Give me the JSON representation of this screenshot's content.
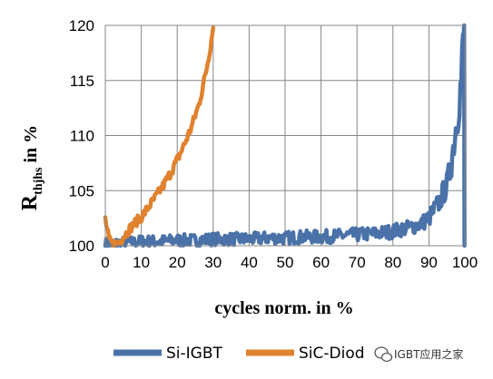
{
  "chart_data": {
    "type": "line",
    "xlabel": "cycles norm. in %",
    "ylabel_main": "R",
    "ylabel_sub": "thjhs",
    "ylabel_rest": " in %",
    "xlim": [
      0,
      100
    ],
    "ylim": [
      100,
      120
    ],
    "x_ticks": [
      "0",
      "10",
      "20",
      "30",
      "40",
      "50",
      "60",
      "70",
      "80",
      "90",
      "100"
    ],
    "y_ticks": [
      "100",
      "105",
      "110",
      "115",
      "120"
    ],
    "grid": true,
    "legend_position": "bottom",
    "series": [
      {
        "name": "Si-IGBT",
        "color": "#4A72A8",
        "x": [
          0,
          3,
          5,
          8,
          10,
          15,
          20,
          25,
          30,
          35,
          40,
          45,
          50,
          55,
          60,
          65,
          70,
          75,
          80,
          82,
          84,
          86,
          88,
          89,
          90,
          91,
          92,
          93,
          94,
          95,
          96,
          97,
          98,
          99,
          99.5,
          99.8
        ],
        "y": [
          100.2,
          100.2,
          100.3,
          100.3,
          100.4,
          100.4,
          100.5,
          100.5,
          100.6,
          100.6,
          100.6,
          100.7,
          100.7,
          100.8,
          100.8,
          100.9,
          101.0,
          101.1,
          101.3,
          101.5,
          101.6,
          101.8,
          102.0,
          102.3,
          102.5,
          103.0,
          103.5,
          104.0,
          104.8,
          105.5,
          107.0,
          109.5,
          112.0,
          115.0,
          118.0,
          120.0
        ]
      },
      {
        "name": "SiC-Diode",
        "color": "#E0822E",
        "x": [
          0,
          1,
          2,
          3,
          4,
          5,
          6,
          7,
          8,
          10,
          12,
          14,
          16,
          18,
          20,
          22,
          24,
          26,
          27,
          28,
          29,
          30
        ],
        "y": [
          102.4,
          100.5,
          100.2,
          100.2,
          100.4,
          100.8,
          101.2,
          101.6,
          102.0,
          102.6,
          103.5,
          104.4,
          105.4,
          106.5,
          107.8,
          109.2,
          110.8,
          112.8,
          114.2,
          115.8,
          117.6,
          119.8
        ]
      }
    ],
    "legend": {
      "series1_label": "Si-IGBT",
      "series2_label": "SiC-Diod"
    }
  },
  "watermark": {
    "text": "IGBT应用之家",
    "icon": "wechat-icon"
  }
}
